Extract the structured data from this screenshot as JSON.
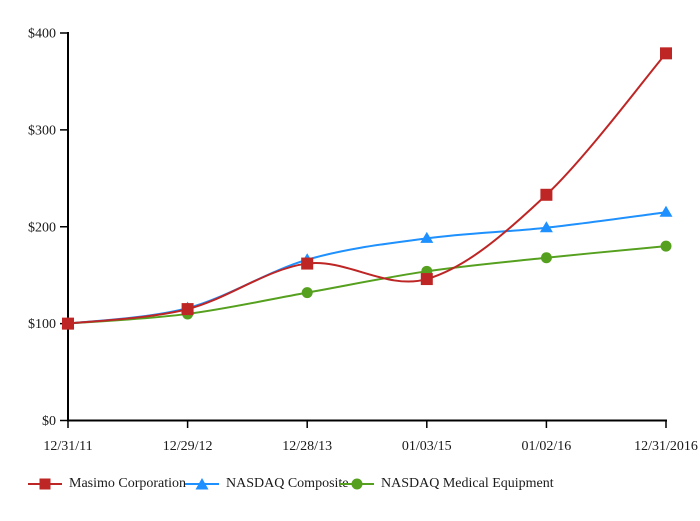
{
  "chart_data": {
    "type": "line",
    "title": "",
    "xlabel": "",
    "ylabel": "",
    "categories": [
      "12/31/11",
      "12/29/12",
      "12/28/13",
      "01/03/15",
      "01/02/16",
      "12/31/2016"
    ],
    "y_ticks": [
      "$0",
      "$100",
      "$200",
      "$300",
      "$400"
    ],
    "ylim": [
      0,
      400
    ],
    "grid": false,
    "legend_position": "bottom",
    "series": [
      {
        "name": "Masimo Corporation",
        "marker": "square",
        "color": "#BE2625",
        "values": [
          100,
          115,
          162,
          146,
          233,
          379
        ]
      },
      {
        "name": "NASDAQ Composite",
        "marker": "triangle",
        "color": "#1E90FF",
        "values": [
          100,
          116,
          166,
          188,
          199,
          215
        ]
      },
      {
        "name": "NASDAQ Medical Equipment",
        "marker": "circle",
        "color": "#55A01E",
        "values": [
          100,
          110,
          132,
          154,
          168,
          180
        ]
      }
    ]
  }
}
